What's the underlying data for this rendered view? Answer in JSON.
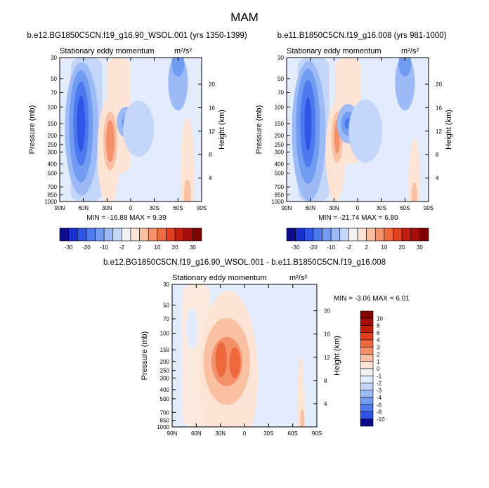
{
  "figure_title": "MAM",
  "colors": {
    "cool": [
      "#0c0c8c",
      "#1a2fd0",
      "#2e55e6",
      "#4c7aee",
      "#729bf2",
      "#9cbaf6",
      "#c4d6f9",
      "#e2ecfc"
    ],
    "warm": [
      "#fde3d4",
      "#f9c0a2",
      "#f4916a",
      "#ee6a3e",
      "#e2401c",
      "#c21e0c",
      "#a60d0b",
      "#800000"
    ],
    "missing": "#f6f6f6"
  },
  "chart_data": [
    {
      "type": "contour",
      "title": "b.e12.BG1850C5CN.f19_g16.90_WSOL.001 (yrs 1350-1399)",
      "subtitle_left": "Stationary eddy momentum",
      "units": "m²/s²",
      "xlabel": "",
      "ylabel_left": "Pressure (mb)",
      "ylabel_right": "Height (km)",
      "x_ticks": [
        "90N",
        "60N",
        "30N",
        "0",
        "30S",
        "60S",
        "90S"
      ],
      "x_range": [
        90,
        -90
      ],
      "pressure_ticks": [
        30,
        50,
        70,
        100,
        150,
        200,
        250,
        300,
        400,
        500,
        700,
        850,
        1000
      ],
      "pressure_range": [
        1000,
        30
      ],
      "y_scale": "log",
      "height_ticks": [
        4,
        8,
        12,
        16,
        20
      ],
      "stats": "MIN = -16.88   MAX =   9.39",
      "min": -16.88,
      "max": 9.39,
      "colorbar": {
        "orientation": "horizontal",
        "levels": [
          -30,
          -20,
          -10,
          -2,
          2,
          10,
          20,
          30
        ],
        "labels": [
          "-30",
          "-20",
          "-10",
          "-2",
          "2",
          "10",
          "20",
          "30"
        ]
      },
      "features": [
        {
          "lat": 62,
          "p": 140,
          "value": -16.9,
          "sign": "negative"
        },
        {
          "lat": 7,
          "p": 140,
          "value": -10,
          "sign": "negative"
        },
        {
          "lat": 25,
          "p": 230,
          "value": 9.4,
          "sign": "positive"
        },
        {
          "lat": -60,
          "p": 35,
          "value": -4,
          "sign": "negative"
        }
      ]
    },
    {
      "type": "contour",
      "title": "b.e11.B1850C5CN.f19_g16.008 (yrs 981-1000)",
      "subtitle_left": "Stationary eddy momentum",
      "units": "m²/s²",
      "xlabel": "",
      "ylabel_left": "Pressure (mb)",
      "ylabel_right": "Height (km)",
      "x_ticks": [
        "90N",
        "60N",
        "30N",
        "0",
        "30S",
        "60S",
        "90S"
      ],
      "x_range": [
        90,
        -90
      ],
      "pressure_ticks": [
        30,
        50,
        70,
        100,
        150,
        200,
        250,
        300,
        400,
        500,
        700,
        850,
        1000
      ],
      "pressure_range": [
        1000,
        30
      ],
      "y_scale": "log",
      "height_ticks": [
        4,
        8,
        12,
        16,
        20
      ],
      "stats": "MIN = -21.74   MAX =   6.80",
      "min": -21.74,
      "max": 6.8,
      "colorbar": {
        "orientation": "horizontal",
        "levels": [
          -30,
          -20,
          -10,
          -2,
          2,
          10,
          20,
          30
        ],
        "labels": [
          "-30",
          "-20",
          "-10",
          "-2",
          "2",
          "10",
          "20",
          "30"
        ]
      },
      "features": [
        {
          "lat": 62,
          "p": 140,
          "value": -21.7,
          "sign": "negative"
        },
        {
          "lat": 12,
          "p": 145,
          "value": -12,
          "sign": "negative"
        },
        {
          "lat": 25,
          "p": 220,
          "value": 6.8,
          "sign": "positive"
        },
        {
          "lat": -60,
          "p": 35,
          "value": -4,
          "sign": "negative"
        }
      ]
    },
    {
      "type": "contour",
      "title": "b.e12.BG1850C5CN.f19_g16.90_WSOL.001 - b.e11.B1850C5CN.f19_g16.008",
      "subtitle_left": "Stationary eddy momentum",
      "units": "m²/s²",
      "xlabel": "",
      "ylabel_left": "Pressure (mb)",
      "ylabel_right": "Height (km)",
      "x_ticks": [
        "90N",
        "60N",
        "30N",
        "0",
        "30S",
        "60S",
        "90S"
      ],
      "x_range": [
        90,
        -90
      ],
      "pressure_ticks": [
        30,
        50,
        70,
        100,
        150,
        200,
        250,
        300,
        400,
        500,
        700,
        850,
        1000
      ],
      "pressure_range": [
        1000,
        30
      ],
      "y_scale": "log",
      "height_ticks": [
        4,
        8,
        12,
        16,
        20
      ],
      "stats": "MIN =  -3.06   MAX =   6.01",
      "min": -3.06,
      "max": 6.01,
      "colorbar": {
        "orientation": "vertical",
        "levels": [
          -10,
          -8,
          -6,
          -4,
          -3,
          -2,
          -1,
          0,
          1,
          2,
          3,
          4,
          6,
          8,
          10
        ],
        "labels": [
          "10",
          "8",
          "6",
          "4",
          "3",
          "2",
          "1",
          "0",
          "-1",
          "-2",
          "-3",
          "-4",
          "-6",
          "-8",
          "-10"
        ]
      },
      "features": [
        {
          "lat": 28,
          "p": 190,
          "value": 6.0,
          "sign": "positive"
        },
        {
          "lat": 12,
          "p": 200,
          "value": 5.0,
          "sign": "positive"
        },
        {
          "lat": -70,
          "p": 800,
          "value": 1.5,
          "sign": "positive"
        },
        {
          "lat": 60,
          "p": 300,
          "value": -1,
          "sign": "negative"
        }
      ]
    }
  ]
}
